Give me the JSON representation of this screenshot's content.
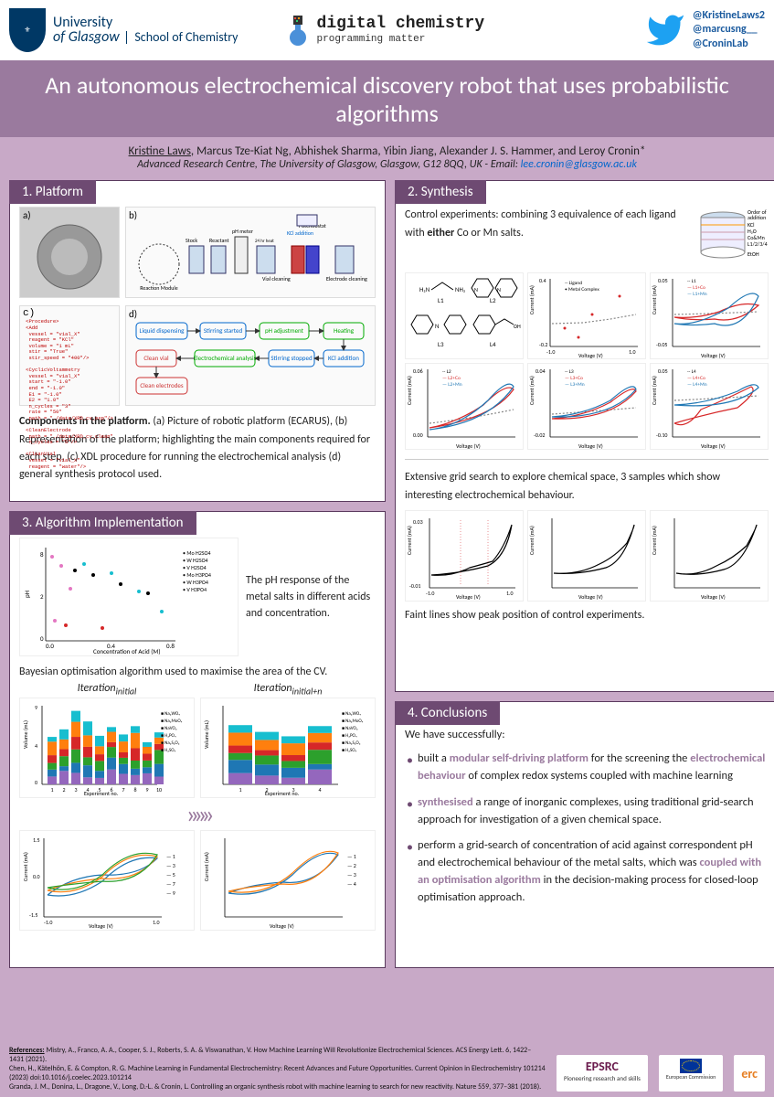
{
  "header": {
    "university": {
      "line1": "University",
      "line2": "of Glasgow",
      "school": "School of\nChemistry"
    },
    "digital_chem": {
      "title": "digital chemistry",
      "subtitle": "programming matter"
    },
    "twitter_handles": [
      "@KristineLaws2",
      "@marcusng__",
      "@CroninLab"
    ]
  },
  "title": "An autonomous electrochemical discovery robot that uses probabilistic algorithms",
  "authors": "Kristine Laws, Marcus Tze-Kiat Ng, Abhishek Sharma, Yibin Jiang, Alexander J. S. Hammer, and Leroy Cronin*",
  "author_underline": "Kristine Laws",
  "affiliation": "Advanced Research Centre, The University of Glasgow, Glasgow, G12 8QQ, UK - Email: ",
  "email": "lee.cronin@glasgow.ac.uk",
  "sections": {
    "platform": {
      "title": "1. Platform",
      "caption_bold": "Components in the platform.",
      "caption": " (a) Picture of robotic platform (ECARUS), (b) Representation of the platform; highlighting the main components required for each step, (c) XDL procedure for running the electrochemical analysis (d) general synthesis protocol used.",
      "flow_boxes": [
        "Liquid dispensing",
        "Stirring started",
        "pH adjustment",
        "Heating",
        "Clean vial",
        "Electrochemical analysis",
        "Stirring stopped",
        "KCl addition",
        "Clean electrodes"
      ],
      "platform_labels": [
        "Potentiostat",
        "KCl addition",
        "Stock Solutions",
        "Reactant addition",
        "pH meter",
        "Reaction Module",
        "24 hr heat and stir",
        "Vial cleaning",
        "Electrode cleaning"
      ]
    },
    "algorithm": {
      "title": "3. Algorithm Implementation",
      "scatter_caption": "The pH response of the metal salts in different acids and concentration.",
      "scatter_legend": [
        "Mo H2SO4",
        "W H2SO4",
        "V H2SO4",
        "Mo H3PO4",
        "W H3PO4",
        "V H3PO4"
      ],
      "scatter_axes": {
        "xlabel": "Concentration of Acid (M)",
        "ylabel": "pH",
        "xlim": [
          0.0,
          0.8
        ],
        "ylim": [
          0,
          8
        ]
      },
      "bayes_text": "Bayesian optimisation algorithm used to maximise the area of the CV.",
      "iter_left": "Iteration",
      "iter_left_sub": "initial",
      "iter_right": "Iteration",
      "iter_right_sub": "initial+n",
      "bar_legend": [
        "Na₂WO₄",
        "Na₂MoO₄",
        "NaVO₃",
        "H₃PO₄",
        "Na₂S₂O₃",
        "H₂SO₄"
      ],
      "bar_colors": [
        "#9467bd",
        "#1f77b4",
        "#2ca02c",
        "#d62728",
        "#ff7f0e",
        "#17becf"
      ],
      "bar_axes": {
        "xlabel": "Experiment no.",
        "ylabel": "Volume (mL)",
        "ylim": [
          0,
          9
        ]
      },
      "cv_axes": {
        "xlabel": "Voltage (V)",
        "ylabel": "Current (mA)",
        "xlim": [
          -1.0,
          1.0
        ],
        "ylim": [
          -1.5,
          1.5
        ]
      },
      "cv_legend_left": [
        "1",
        "3",
        "5",
        "7",
        "9"
      ],
      "cv_legend_right": [
        "1",
        "2",
        "3",
        "4"
      ]
    },
    "synthesis": {
      "title": "2. Synthesis",
      "control_text": "Control experiments: combining 3 equivalence of each ligand with either Co or Mn salts.",
      "order_label": "Order of addition",
      "order_items": [
        "KCl",
        "H₂O",
        "Co&Mn",
        "L1/2/3/4",
        "EtOH"
      ],
      "ligands": [
        "L1",
        "L2",
        "L3",
        "L4"
      ],
      "cv_ligand_axes": {
        "xlabel": "Voltage (V)",
        "ylabel": "Current (mA)",
        "xlim": [
          -1.0,
          1.0
        ]
      },
      "cv_small": [
        {
          "legend": [
            "Ligand",
            "Metal Complex"
          ],
          "ylim": [
            -0.2,
            0.4
          ]
        },
        {
          "legend": [
            "L1",
            "L1+Co",
            "L1+Mn"
          ],
          "ylim": [
            -0.05,
            0.05
          ]
        },
        {
          "legend": [
            "L2",
            "L2+Co",
            "L2+Mn"
          ],
          "ylim": [
            0.0,
            0.06
          ]
        },
        {
          "legend": [
            "L3",
            "L3+Co",
            "L3+Mn"
          ],
          "ylim": [
            -0.02,
            0.04
          ]
        },
        {
          "legend": [
            "L4",
            "L4+Co",
            "L4+Mn"
          ],
          "ylim": [
            -0.1,
            0.05
          ]
        }
      ],
      "grid_text": "Extensive grid search to explore chemical space, 3 samples which show interesting electrochemical behaviour.",
      "grid_cv_ylim": [
        -0.01,
        0.03
      ],
      "faint_text": "Faint lines show peak position of control experiments."
    },
    "conclusions": {
      "title": "4. Conclusions",
      "intro": "We have successfully:",
      "items": [
        {
          "pre": "built a ",
          "hl": "modular self-driving platform",
          "post": " for the screening the ",
          "hl2": "electrochemical behaviour",
          "post2": " of complex redox systems coupled with machine learning"
        },
        {
          "hl": "synthesised",
          "post": " a range of inorganic complexes, using traditional grid-search approach for investigation of a given chemical space."
        },
        {
          "pre": "perform a grid-search of  concentration of acid against correspondent pH and electrochemical behaviour of the metal salts, which was ",
          "hl": "coupled with an optimisation algorithm",
          "post": " in the decision-making process for closed-loop optimisation approach."
        }
      ]
    }
  },
  "references": {
    "label": "References:",
    "lines": [
      "Mistry, A., Franco, A. A., Cooper, S. J., Roberts, S. A. & Viswanathan, V. How Machine Learning Will Revolutionize Electrochemical Sciences. ACS Energy Lett. 6, 1422–1431 (2021).",
      "Chen, H., Kätelhön, E. & Compton, R. G. Machine Learning in Fundamental Electrochemistry: Recent Advances and Future Opportunities. Current Opinion in Electrochemistry 101214 (2023) doi:10.1016/j.coelec.2023.101214",
      "Granda, J. M., Donina, L., Dragone, V., Long, D.-L. & Cronin, L. Controlling an organic synthesis robot with machine learning to search for new reactivity. Nature 559, 377–381 (2018)."
    ]
  },
  "sponsors": {
    "epsrc": "EPSRC",
    "epsrc_sub": "Pioneering research and skills",
    "eu": "European Commission",
    "erc": "erc"
  },
  "colors": {
    "bg": "#c8a9c7",
    "title_bg": "#9a7a9e",
    "panel_title_bg": "#6e4a72",
    "line_grey": "#888888",
    "line_red": "#d62728",
    "line_blue": "#1f77b4"
  }
}
